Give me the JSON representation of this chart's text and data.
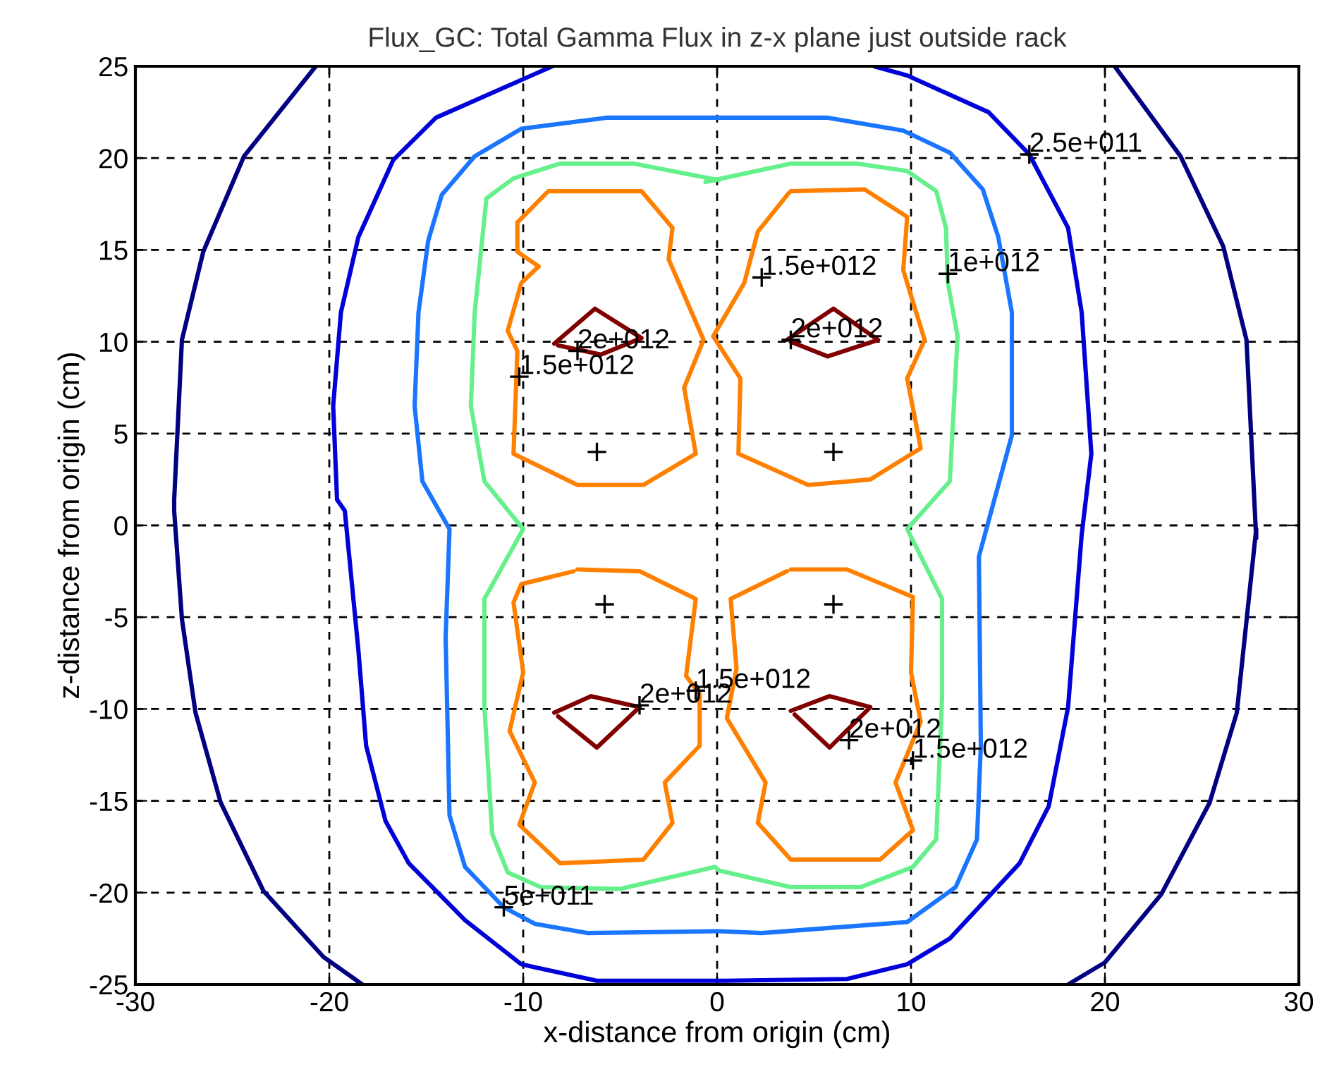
{
  "chart_data": {
    "type": "line",
    "title": "Flux_GC: Total Gamma Flux in z-x plane just outside rack",
    "xlabel": "x-distance from origin (cm)",
    "ylabel": "z-distance from origin (cm)",
    "xlim": [
      -30,
      30
    ],
    "ylim": [
      -25,
      25
    ],
    "xticks": [
      -30,
      -20,
      -10,
      0,
      10,
      20,
      30
    ],
    "yticks": [
      -25,
      -20,
      -15,
      -10,
      -5,
      0,
      5,
      10,
      15,
      20,
      25
    ],
    "grid": true,
    "marker": "none",
    "line_style": "solid",
    "series": [
      {
        "color": "#000080",
        "x": [
          -20.7,
          -24.4,
          -26.5,
          -27.6,
          -28.0,
          -28.0,
          -27.6,
          -26.9,
          -25.6,
          -23.4,
          -20.3,
          -18.3,
          null,
          20.5,
          23.9,
          26.1,
          27.3,
          27.8,
          27.8,
          26.8,
          25.4,
          22.9,
          20.0,
          18.1
        ],
        "values": [
          25,
          20.1,
          14.9,
          10.1,
          1.4,
          0.8,
          -5.1,
          -10.2,
          -15.1,
          -19.9,
          -23.5,
          -25,
          null,
          25,
          20.1,
          15.2,
          10.1,
          -0.7,
          -0.2,
          -10.2,
          -15.1,
          -20.1,
          -23.8,
          -25
        ]
      },
      {
        "color": "#0000d8",
        "x": [
          -8.5,
          -14.5,
          -16.7,
          -18.5,
          -19.4,
          -19.8,
          -19.6,
          -19.2,
          -18.5,
          -18.1,
          -17.1,
          -15.9,
          -13.0,
          -10.1,
          -6.2,
          0.4,
          6.7,
          9.8,
          12.0,
          15.6,
          17.1,
          18.1,
          18.8,
          19.3,
          18.8,
          18.1,
          16.1,
          14.0,
          9.8,
          8.1
        ],
        "values": [
          25,
          22.2,
          19.9,
          15.7,
          11.6,
          6.5,
          1.4,
          0.8,
          -6.8,
          -12.0,
          -16.1,
          -18.4,
          -21.5,
          -23.9,
          -24.8,
          -24.8,
          -24.7,
          -23.9,
          -22.5,
          -18.4,
          -15.3,
          -9.9,
          -0.5,
          3.9,
          11.6,
          16.2,
          20.2,
          22.5,
          24.5,
          25
        ]
      },
      {
        "color": "#1a75ff",
        "x": [
          0.1,
          -5.7,
          -10.1,
          -12.5,
          -14.2,
          -14.9,
          -15.4,
          -15.6,
          -15.2,
          -13.8,
          -14.0,
          -13.8,
          -13.0,
          -11.0,
          -9.4,
          -6.7,
          0.1,
          2.3,
          9.8,
          12.3,
          13.4,
          13.6,
          13.5,
          15.2,
          15.2,
          14.5,
          13.7,
          12.0,
          9.6,
          5.7,
          3.8,
          -0.6,
          -0.1
        ],
        "values": [
          22.2,
          22.2,
          21.6,
          20.1,
          18.0,
          15.5,
          11.6,
          6.5,
          2.4,
          -0.2,
          -6.1,
          -15.8,
          -18.6,
          -20.8,
          -21.7,
          -22.2,
          -22.1,
          -22.2,
          -21.6,
          -19.7,
          -17.1,
          -12.0,
          -1.7,
          4.9,
          11.6,
          15.7,
          18.3,
          20.3,
          21.5,
          22.2,
          22.2,
          22.2,
          22.2
        ]
      },
      {
        "color": "#66f08c",
        "x": [
          0.1,
          -4.3,
          -8.1,
          -10.5,
          -11.9,
          -12.5,
          -12.7,
          -12.0,
          -10.0,
          -12.0,
          -12.0,
          -11.6,
          -10.8,
          -9.1,
          -5.0,
          -0.1,
          0.1,
          3.8,
          7.4,
          10.1,
          11.3,
          11.6,
          11.6,
          9.8,
          12.0,
          12.4,
          11.9,
          11.8,
          11.3,
          9.8,
          7.2,
          3.8,
          -0.6,
          -0.1
        ],
        "values": [
          18.8,
          19.7,
          19.7,
          18.9,
          17.8,
          11.6,
          6.5,
          2.4,
          -0.2,
          -4.0,
          -9.9,
          -16.8,
          -18.9,
          -19.7,
          -19.8,
          -18.6,
          -18.8,
          -19.7,
          -19.7,
          -18.6,
          -17.1,
          -9.4,
          -4.0,
          -0.2,
          2.4,
          10.3,
          13.2,
          16.2,
          18.2,
          19.3,
          19.7,
          19.7,
          18.7,
          18.8
        ]
      },
      {
        "color": "#ff8000",
        "x": [
          -8.7,
          -3.9,
          -2.3,
          -2.5,
          -0.7,
          -1.7,
          -1.1,
          -3.8,
          -7.2,
          -10.5,
          -10.3,
          -10.8,
          -10.1,
          -9.2,
          -10.3,
          -10.3,
          -8.8,
          null,
          3.8,
          7.6,
          9.8,
          9.6,
          10.7,
          9.8,
          10.5,
          7.9,
          4.7,
          1.1,
          1.2,
          -0.2,
          1.4,
          2.1,
          3.7,
          null,
          -7.2,
          -4.0,
          -1.1,
          -1.6,
          -0.9,
          -0.9,
          -2.7,
          -2.3,
          -3.8,
          -8.1,
          -10.2,
          -9.4,
          -10.7,
          -10.0,
          -10.5,
          -10.1,
          -7.4,
          null,
          3.8,
          6.7,
          10.1,
          10.0,
          10.5,
          9.2,
          10.1,
          8.4,
          3.8,
          2.1,
          2.5,
          0.5,
          1.0,
          0.7,
          3.6
        ],
        "values": [
          18.2,
          18.2,
          16.2,
          14.5,
          10.1,
          7.5,
          3.9,
          2.2,
          2.2,
          3.9,
          9.5,
          10.6,
          13.2,
          14.1,
          14.9,
          16.5,
          18.1,
          null,
          18.2,
          18.3,
          16.8,
          13.9,
          10.1,
          8.0,
          4.2,
          2.5,
          2.2,
          3.9,
          8.0,
          10.3,
          13.2,
          16.0,
          18.1,
          null,
          -2.4,
          -2.5,
          -4.0,
          -8.2,
          -9.2,
          -12.0,
          -14.0,
          -16.2,
          -18.2,
          -18.4,
          -16.3,
          -14.0,
          -11.2,
          -8.0,
          -4.2,
          -3.2,
          -2.5,
          null,
          -2.4,
          -2.4,
          -3.9,
          -8.0,
          -10.7,
          -14.0,
          -16.6,
          -18.2,
          -18.2,
          -16.2,
          -14.0,
          -10.5,
          -7.8,
          -4.0,
          -2.5
        ]
      },
      {
        "color": "#800000",
        "x": [
          -8.4,
          -6.3,
          -3.9,
          -6.0,
          -8.2,
          null,
          3.6,
          6.0,
          8.3,
          5.7,
          3.8,
          null,
          -8.4,
          -6.5,
          -4.0,
          -6.2,
          -8.2,
          null,
          3.8,
          5.8,
          7.9,
          5.8,
          4.0
        ],
        "values": [
          9.9,
          11.8,
          10.2,
          9.3,
          9.8,
          null,
          10.1,
          11.8,
          10.1,
          9.2,
          10.0,
          null,
          -10.2,
          -9.3,
          -9.9,
          -12.1,
          -10.4,
          null,
          -10.1,
          -9.3,
          -9.9,
          -12.1,
          -10.3
        ]
      },
      {
        "type": "scatter",
        "marker": "cross",
        "color": "#000000",
        "x": [
          -6.2,
          6.0,
          -5.8,
          6.0,
          16.1,
          11.9,
          2.3,
          3.8,
          -7.2,
          -10.2,
          -1.1,
          -4.0,
          6.8,
          10.1,
          -11.0
        ],
        "values": [
          4.0,
          4.0,
          -4.3,
          -4.3,
          20.2,
          13.7,
          13.5,
          10.1,
          9.5,
          8.1,
          -9.0,
          -9.8,
          -11.7,
          -12.8,
          -20.8
        ]
      }
    ],
    "annotations": [
      {
        "text": "2.5e+011",
        "x": 16.1,
        "y": 20.2
      },
      {
        "text": "1e+012",
        "x": 11.9,
        "y": 13.7
      },
      {
        "text": "1.5e+012",
        "x": 2.3,
        "y": 13.5
      },
      {
        "text": "2e+012",
        "x": 3.8,
        "y": 10.1
      },
      {
        "text": "2e+012",
        "x": -7.2,
        "y": 9.5
      },
      {
        "text": "1.5e+012",
        "x": -10.2,
        "y": 8.1
      },
      {
        "text": "1.5e+012",
        "x": -1.1,
        "y": -9.0
      },
      {
        "text": "2e+012",
        "x": -4.0,
        "y": -9.8
      },
      {
        "text": "2e+012",
        "x": 6.8,
        "y": -11.7
      },
      {
        "text": "1.5e+012",
        "x": 10.1,
        "y": -12.8
      },
      {
        "text": "5e+011",
        "x": -11.0,
        "y": -20.8
      }
    ]
  }
}
